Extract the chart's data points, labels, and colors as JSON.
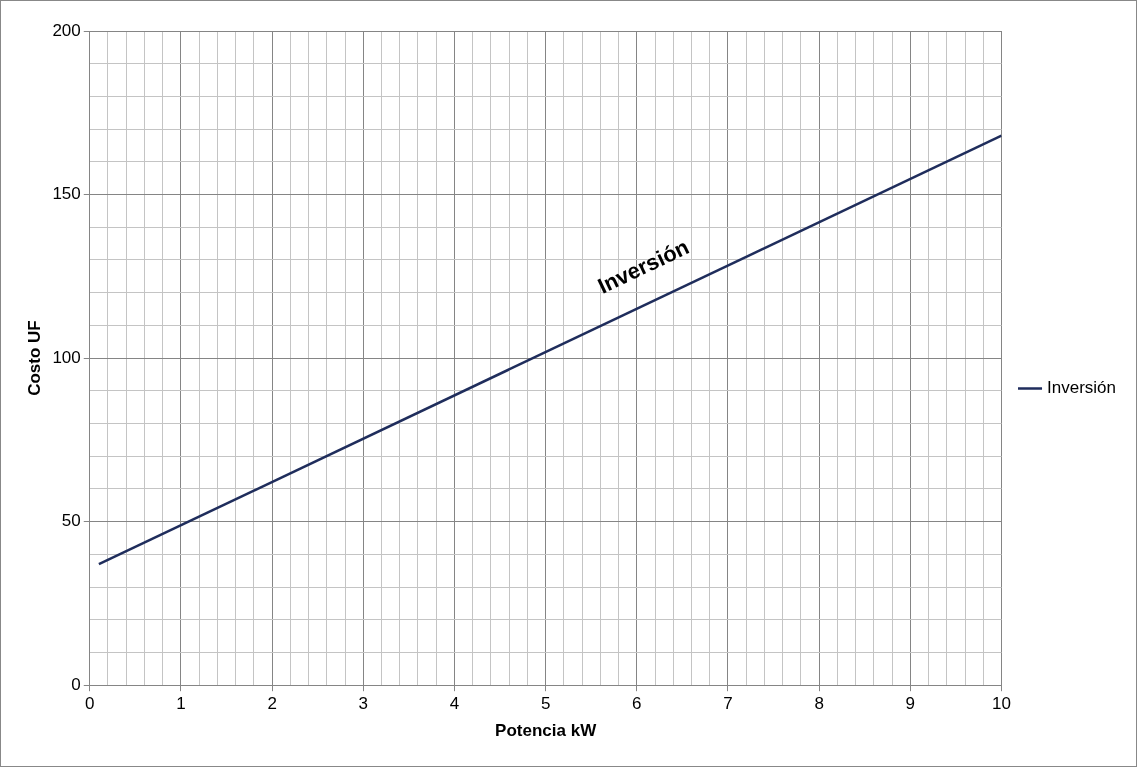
{
  "chart_data": {
    "type": "line",
    "xlabel": "Potencia kW",
    "ylabel": "Costo UF",
    "series": [
      {
        "name": "Inversión",
        "color": "#1f2d5c",
        "x": [
          0.1,
          10
        ],
        "values": [
          37,
          168
        ]
      }
    ],
    "xlim": [
      0,
      10
    ],
    "xticks": [
      0,
      {
        "value": 0.2,
        "label": null
      },
      {
        "value": 0.4,
        "label": null
      },
      {
        "value": 0.6,
        "label": null
      },
      {
        "value": 0.8,
        "label": null
      },
      1,
      {
        "value": 1.2,
        "label": null
      },
      {
        "value": 1.4,
        "label": null
      },
      {
        "value": 1.6,
        "label": null
      },
      {
        "value": 1.8,
        "label": null
      },
      2,
      {
        "value": 2.2,
        "label": null
      },
      {
        "value": 2.4,
        "label": null
      },
      {
        "value": 2.6,
        "label": null
      },
      {
        "value": 2.8,
        "label": null
      },
      3,
      {
        "value": 3.2,
        "label": null
      },
      {
        "value": 3.4,
        "label": null
      },
      {
        "value": 3.6,
        "label": null
      },
      {
        "value": 3.8,
        "label": null
      },
      4,
      {
        "value": 4.2,
        "label": null
      },
      {
        "value": 4.4,
        "label": null
      },
      {
        "value": 4.6,
        "label": null
      },
      {
        "value": 4.8,
        "label": null
      },
      5,
      {
        "value": 5.2,
        "label": null
      },
      {
        "value": 5.4,
        "label": null
      },
      {
        "value": 5.6,
        "label": null
      },
      {
        "value": 5.8,
        "label": null
      },
      6,
      {
        "value": 6.2,
        "label": null
      },
      {
        "value": 6.4,
        "label": null
      },
      {
        "value": 6.6,
        "label": null
      },
      {
        "value": 6.8,
        "label": null
      },
      7,
      {
        "value": 7.2,
        "label": null
      },
      {
        "value": 7.4,
        "label": null
      },
      {
        "value": 7.6,
        "label": null
      },
      {
        "value": 7.8,
        "label": null
      },
      8,
      {
        "value": 8.2,
        "label": null
      },
      {
        "value": 8.4,
        "label": null
      },
      {
        "value": 8.6,
        "label": null
      },
      {
        "value": 8.8,
        "label": null
      },
      9,
      {
        "value": 9.2,
        "label": null
      },
      {
        "value": 9.4,
        "label": null
      },
      {
        "value": 9.6,
        "label": null
      },
      {
        "value": 9.8,
        "label": null
      },
      10
    ],
    "ylim": [
      0,
      200
    ],
    "yticks": [
      0,
      {
        "value": 10,
        "label": null
      },
      {
        "value": 20,
        "label": null
      },
      {
        "value": 30,
        "label": null
      },
      {
        "value": 40,
        "label": null
      },
      50,
      {
        "value": 60,
        "label": null
      },
      {
        "value": 70,
        "label": null
      },
      {
        "value": 80,
        "label": null
      },
      {
        "value": 90,
        "label": null
      },
      100,
      {
        "value": 110,
        "label": null
      },
      {
        "value": 120,
        "label": null
      },
      {
        "value": 130,
        "label": null
      },
      {
        "value": 140,
        "label": null
      },
      150,
      {
        "value": 160,
        "label": null
      },
      {
        "value": 170,
        "label": null
      },
      {
        "value": 180,
        "label": null
      },
      {
        "value": 190,
        "label": null
      },
      200
    ],
    "grid": true,
    "legend": "right",
    "marker": "none",
    "line_style": "solid",
    "annotations": [
      "Inversión"
    ]
  }
}
